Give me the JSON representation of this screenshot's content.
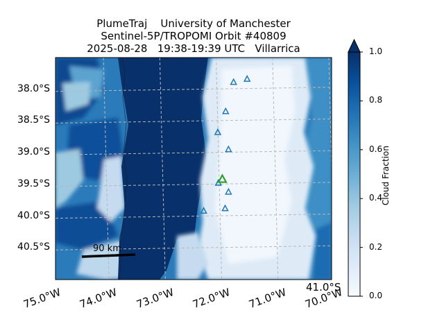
{
  "title": {
    "line1": "PlumeTraj    University of Manchester",
    "line2": "Sentinel-5P/TROPOMI Orbit #40809",
    "line3": "2025-08-28   19:38-19:39 UTC   Villarrica"
  },
  "map": {
    "lon_range": [
      -74.9,
      -70.0
    ],
    "lat_range": [
      -41.0,
      -37.5
    ],
    "lat_ticks": [
      {
        "value": -38.0,
        "label": "38.0°S"
      },
      {
        "value": -38.5,
        "label": "38.5°S"
      },
      {
        "value": -39.0,
        "label": "39.0°S"
      },
      {
        "value": -39.5,
        "label": "39.5°S"
      },
      {
        "value": -40.0,
        "label": "40.0°S"
      },
      {
        "value": -40.5,
        "label": "40.5°S"
      }
    ],
    "lon_ticks": [
      {
        "value": -75.0,
        "label": "75.0°W"
      },
      {
        "value": -74.0,
        "label": "74.0°W"
      },
      {
        "value": -73.0,
        "label": "73.0°W"
      },
      {
        "value": -72.0,
        "label": "72.0°W"
      },
      {
        "value": -71.0,
        "label": "71.0°W"
      },
      {
        "value": -70.0,
        "label": "70.0°W"
      }
    ],
    "corner_label": "41.0°S",
    "scale_bar_label": "90 km",
    "volcano": {
      "name": "Villarrica",
      "lon": -71.94,
      "lat": -39.42,
      "color": "#2ca02c"
    },
    "trajectory_points": [
      {
        "lon": -71.74,
        "lat": -37.89
      },
      {
        "lon": -71.5,
        "lat": -37.84
      },
      {
        "lon": -71.88,
        "lat": -38.35
      },
      {
        "lon": -72.02,
        "lat": -38.68
      },
      {
        "lon": -71.83,
        "lat": -38.95
      },
      {
        "lon": -72.01,
        "lat": -39.48
      },
      {
        "lon": -71.83,
        "lat": -39.62
      },
      {
        "lon": -72.27,
        "lat": -39.92
      },
      {
        "lon": -71.89,
        "lat": -39.88
      }
    ]
  },
  "colorbar": {
    "label": "Cloud Fraction",
    "min": 0.0,
    "max": 1.0,
    "ticks": [
      {
        "value": 1.0,
        "label": "1.0"
      },
      {
        "value": 0.8,
        "label": "0.8"
      },
      {
        "value": 0.6,
        "label": "0.6"
      },
      {
        "value": 0.4,
        "label": "0.4"
      },
      {
        "value": 0.2,
        "label": "0.2"
      },
      {
        "value": 0.0,
        "label": "0.0"
      }
    ],
    "colors": [
      "#f7fbff",
      "#deebf7",
      "#c6dbef",
      "#9ecae1",
      "#6baed6",
      "#4292c6",
      "#2171b5",
      "#08519c",
      "#08306b"
    ]
  }
}
